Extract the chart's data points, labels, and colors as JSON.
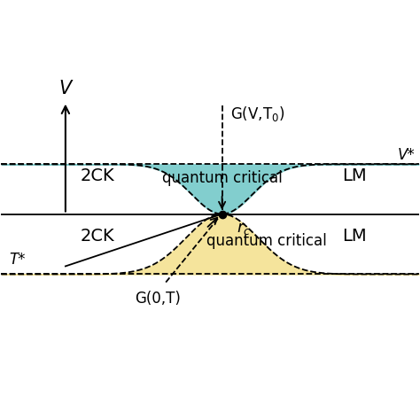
{
  "bg_color": "#ffffff",
  "cyan_color": "#82cece",
  "yellow_color": "#f5e49c",
  "fig_width": 4.74,
  "fig_height": 4.74,
  "dpi": 100,
  "xlim": [
    -2.6,
    2.6
  ],
  "ylim": [
    -1.4,
    1.5
  ],
  "rc_x": 0.15,
  "rc_y": 0.0,
  "y_axis_top": 1.4,
  "y_horizon": 0.0,
  "y_top_cyan": 0.62,
  "y_bottom_yellow": -0.75,
  "cyan_exp_scale": 3.5,
  "yellow_exp_scale": 2.5,
  "label_V": "V",
  "label_Vstar": "V*",
  "label_Tstar": "T*",
  "label_rc": "r$_c$",
  "label_GVT0": "G(V,T$_0$)",
  "label_G0T": "G(0,T)",
  "label_2CK_upper": "2CK",
  "label_LM_upper": "LM",
  "label_qc_upper": "quantum critical",
  "label_2CK_lower": "2CK",
  "label_LM_lower": "LM",
  "label_qc_lower": "quantum critical",
  "fs": 12
}
